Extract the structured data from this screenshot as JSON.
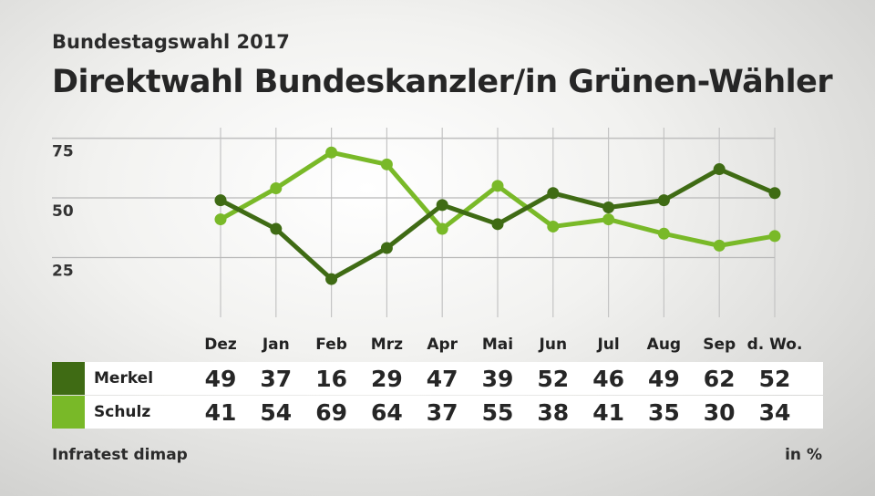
{
  "header": {
    "supertitle": "Bundestagswahl 2017",
    "title": "Direktwahl Bundeskanzler/in Grünen-Wähler"
  },
  "chart_data": {
    "type": "line",
    "categories": [
      "Dez",
      "Jan",
      "Feb",
      "Mrz",
      "Apr",
      "Mai",
      "Jun",
      "Jul",
      "Aug",
      "Sep",
      "d. Wo."
    ],
    "series": [
      {
        "name": "Merkel",
        "color": "#3f6b14",
        "values": [
          49,
          37,
          16,
          29,
          47,
          39,
          52,
          46,
          49,
          62,
          52
        ]
      },
      {
        "name": "Schulz",
        "color": "#79b928",
        "values": [
          41,
          54,
          69,
          64,
          37,
          55,
          38,
          41,
          35,
          30,
          34
        ]
      }
    ],
    "yticks": [
      25,
      50,
      75
    ],
    "ylim": [
      0,
      75
    ],
    "title": "Direktwahl Bundeskanzler/in Grünen-Wähler",
    "xlabel": "",
    "ylabel": ""
  },
  "footer": {
    "source": "Infratest dimap",
    "unit": "in %"
  }
}
